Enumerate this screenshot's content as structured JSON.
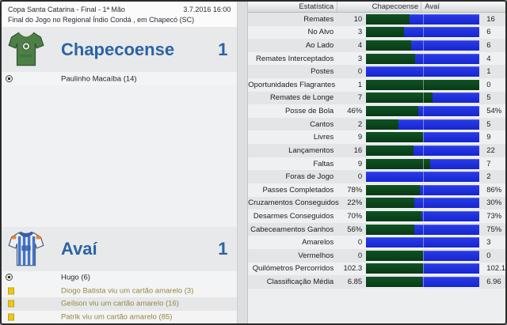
{
  "match": {
    "competition": "Copa Santa Catarina - Final - 1ª Mão",
    "datetime": "3.7.2016 16:00",
    "status_line": "Final do Jogo no Regional Índio Condá , em Chapecó (SC)",
    "home": {
      "name": "Chapecoense",
      "score": "1",
      "scorer": "Paulinho Macaíba (14)"
    },
    "away": {
      "name": "Avaí",
      "score": "1",
      "scorer": "Hugo (6)",
      "cards": [
        {
          "icon": "yellow-card-icon",
          "text": "Diogo Batista viu um cartão amarelo (3)"
        },
        {
          "icon": "yellow-card-icon",
          "text": "Geílson viu um cartão amarelo (16)"
        },
        {
          "icon": "yellow-card-icon",
          "text": "Patrik viu um cartão amarelo (85)"
        }
      ]
    }
  },
  "stats": {
    "headers": {
      "stat": "Estatística",
      "home": "Chapecoense",
      "away": "Avaí"
    },
    "rows": [
      {
        "label": "Remates",
        "home": "10",
        "away": "16",
        "home_num": 10,
        "away_num": 16
      },
      {
        "label": "No Alvo",
        "home": "3",
        "away": "6",
        "home_num": 3,
        "away_num": 6
      },
      {
        "label": "Ao Lado",
        "home": "4",
        "away": "6",
        "home_num": 4,
        "away_num": 6
      },
      {
        "label": "Remates Interceptados",
        "home": "3",
        "away": "4",
        "home_num": 3,
        "away_num": 4
      },
      {
        "label": "Postes",
        "home": "0",
        "away": "1",
        "home_num": 0,
        "away_num": 1
      },
      {
        "label": "Oportunidades Flagrantes",
        "home": "1",
        "away": "0",
        "home_num": 1,
        "away_num": 0
      },
      {
        "label": "Remates de Longe",
        "home": "7",
        "away": "5",
        "home_num": 7,
        "away_num": 5
      },
      {
        "label": "Posse de Bola",
        "home": "46%",
        "away": "54%",
        "home_num": 46,
        "away_num": 54
      },
      {
        "label": "Cantos",
        "home": "2",
        "away": "5",
        "home_num": 2,
        "away_num": 5
      },
      {
        "label": "Livres",
        "home": "9",
        "away": "9",
        "home_num": 9,
        "away_num": 9
      },
      {
        "label": "Lançamentos",
        "home": "16",
        "away": "22",
        "home_num": 16,
        "away_num": 22
      },
      {
        "label": "Faltas",
        "home": "9",
        "away": "7",
        "home_num": 9,
        "away_num": 7
      },
      {
        "label": "Foras de Jogo",
        "home": "0",
        "away": "2",
        "home_num": 0,
        "away_num": 2
      },
      {
        "label": "Passes Completados",
        "home": "78%",
        "away": "86%",
        "home_num": 78,
        "away_num": 86
      },
      {
        "label": "Cruzamentos Conseguidos",
        "home": "22%",
        "away": "30%",
        "home_num": 22,
        "away_num": 30
      },
      {
        "label": "Desarmes Conseguidos",
        "home": "70%",
        "away": "73%",
        "home_num": 70,
        "away_num": 73
      },
      {
        "label": "Cabeceamentos Ganhos",
        "home": "56%",
        "away": "75%",
        "home_num": 56,
        "away_num": 75
      },
      {
        "label": "Amarelos",
        "home": "0",
        "away": "3",
        "home_num": 0,
        "away_num": 3
      },
      {
        "label": "Vermelhos",
        "home": "0",
        "away": "0",
        "home_num": 0,
        "away_num": 0
      },
      {
        "label": "Quilómetros Percorridos",
        "home": "102.3",
        "away": "102.1",
        "home_num": 102.3,
        "away_num": 102.1
      },
      {
        "label": "Classificação Média",
        "home": "6.85",
        "away": "6.96",
        "home_num": 6.85,
        "away_num": 6.96
      }
    ]
  },
  "colors": {
    "home_bar": "#0c4a1e",
    "away_bar": "#1f33e0",
    "team_name_blue": "#2c63a5",
    "card_text_olive": "#8e8a45",
    "yellow_card": "#ecc916"
  }
}
